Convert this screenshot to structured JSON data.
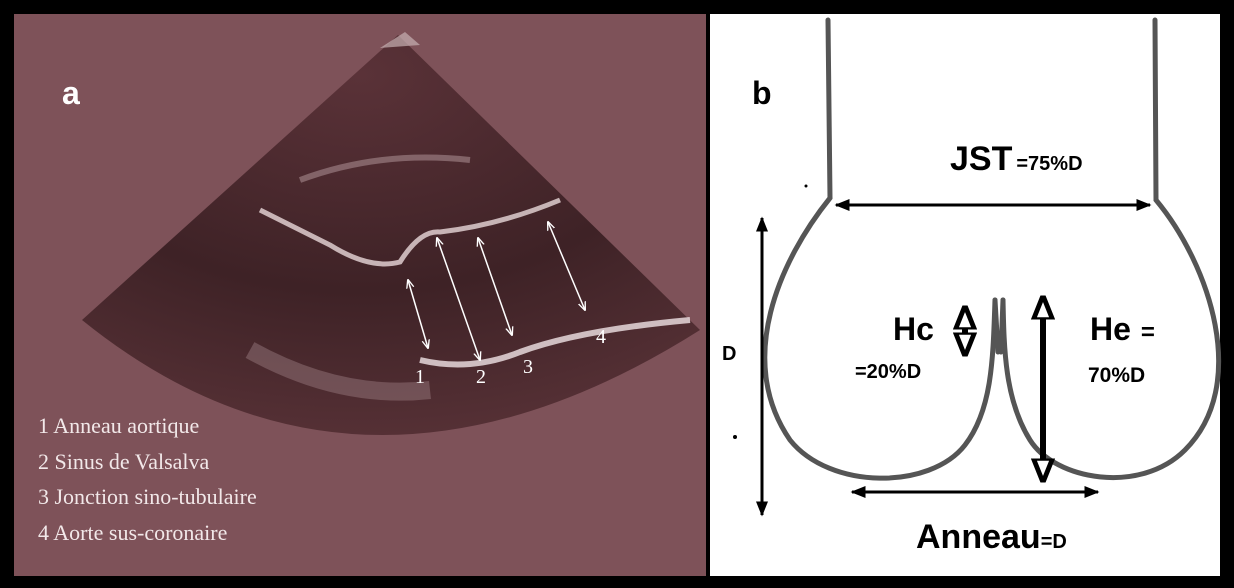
{
  "panel_a": {
    "label": "a",
    "markers": [
      "1",
      "2",
      "3",
      "4"
    ],
    "legend": [
      "1 Anneau aortique",
      "2 Sinus de Valsalva",
      "3 Jonction sino-tubulaire",
      "4 Aorte sus-coronaire"
    ]
  },
  "panel_b": {
    "label": "b",
    "jst": {
      "name": "JST",
      "value": "=75%D"
    },
    "hc": {
      "name": "Hc",
      "value": "=20%D"
    },
    "he": {
      "name": "He",
      "eq": "=",
      "value": "70%D"
    },
    "d": "D",
    "anneau": {
      "name": "Anneau",
      "value": "=D"
    }
  }
}
